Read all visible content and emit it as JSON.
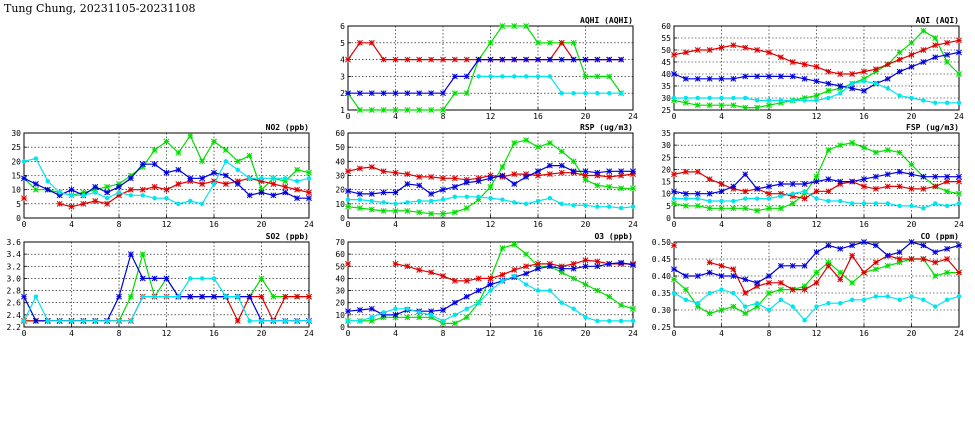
{
  "page": {
    "title": "Tung Chung, 20231105-20231108"
  },
  "colors": {
    "green": "#00dd00",
    "red": "#dd0000",
    "blue": "#0000dd",
    "cyan": "#00e5ee"
  },
  "chart_data": [
    {
      "id": "aqhi",
      "type": "line",
      "title": "AQHI (AQHI)",
      "xlim": [
        0,
        24
      ],
      "xticks": [
        0,
        4,
        8,
        12,
        16,
        20,
        24
      ],
      "ylim": [
        1,
        6
      ],
      "yticks": [
        1,
        2,
        3,
        4,
        5,
        6
      ],
      "grid": true,
      "series": [
        {
          "color": "green",
          "marker": "x",
          "values": [
            2,
            1,
            1,
            1,
            1,
            1,
            1,
            1,
            1,
            2,
            2,
            4,
            5,
            6,
            6,
            6,
            5,
            5,
            5,
            5,
            3,
            3,
            3,
            2
          ]
        },
        {
          "color": "red",
          "marker": "x",
          "values": [
            4,
            5,
            5,
            4,
            4,
            4,
            4,
            4,
            4,
            4,
            4,
            4,
            4,
            4,
            4,
            4,
            4,
            4,
            5,
            4,
            4,
            4,
            4,
            4
          ]
        },
        {
          "color": "blue",
          "marker": "x",
          "values": [
            2,
            2,
            2,
            2,
            2,
            2,
            2,
            2,
            2,
            3,
            3,
            4,
            4,
            4,
            4,
            4,
            4,
            4,
            4,
            4,
            4,
            4,
            4,
            4
          ]
        },
        {
          "color": "cyan",
          "marker": "o",
          "values": [
            null,
            null,
            null,
            null,
            null,
            null,
            null,
            null,
            null,
            null,
            null,
            3,
            3,
            3,
            3,
            3,
            3,
            3,
            2,
            2,
            2,
            2,
            2,
            2
          ]
        }
      ]
    },
    {
      "id": "aqi",
      "type": "line",
      "title": "AQI (AQI)",
      "xlim": [
        0,
        24
      ],
      "xticks": [
        0,
        4,
        8,
        12,
        16,
        20,
        24
      ],
      "ylim": [
        25,
        60
      ],
      "yticks": [
        25,
        30,
        35,
        40,
        45,
        50,
        55,
        60
      ],
      "grid": true,
      "series": [
        {
          "color": "green",
          "marker": "x",
          "values": [
            29,
            28,
            27,
            27,
            27,
            27,
            26,
            26,
            27,
            28,
            29,
            30,
            31,
            33,
            34,
            36,
            38,
            41,
            44,
            49,
            53,
            58,
            55,
            45,
            40
          ]
        },
        {
          "color": "red",
          "marker": "x",
          "values": [
            48,
            49,
            50,
            50,
            51,
            52,
            51,
            50,
            49,
            47,
            45,
            44,
            43,
            41,
            40,
            40,
            41,
            42,
            44,
            46,
            48,
            50,
            52,
            53,
            54
          ]
        },
        {
          "color": "blue",
          "marker": "x",
          "values": [
            40,
            38,
            38,
            38,
            38,
            38,
            39,
            39,
            39,
            39,
            39,
            38,
            37,
            36,
            35,
            34,
            33,
            36,
            38,
            41,
            43,
            45,
            47,
            48,
            49
          ]
        },
        {
          "color": "cyan",
          "marker": "o",
          "values": [
            30,
            30,
            30,
            30,
            30,
            30,
            30,
            29,
            29,
            29,
            29,
            29,
            29,
            30,
            32,
            36,
            37,
            36,
            34,
            31,
            30,
            29,
            28,
            28,
            28
          ]
        }
      ]
    },
    {
      "id": "no2",
      "type": "line",
      "title": "NO2 (ppb)",
      "xlim": [
        0,
        24
      ],
      "xticks": [
        0,
        4,
        8,
        12,
        16,
        20,
        24
      ],
      "ylim": [
        0,
        30
      ],
      "yticks": [
        0,
        5,
        10,
        15,
        20,
        25,
        30
      ],
      "grid": true,
      "series": [
        {
          "color": "green",
          "marker": "x",
          "values": [
            14,
            10,
            10,
            9,
            8,
            9,
            10,
            11,
            12,
            15,
            18,
            24,
            27,
            23,
            29,
            20,
            27,
            24,
            20,
            22,
            10,
            14,
            13,
            17,
            16
          ]
        },
        {
          "color": "red",
          "marker": "x",
          "values": [
            7,
            null,
            null,
            5,
            4,
            5,
            6,
            5,
            8,
            10,
            10,
            11,
            10,
            12,
            13,
            12,
            13,
            12,
            13,
            14,
            13,
            12,
            11,
            10,
            9
          ]
        },
        {
          "color": "blue",
          "marker": "x",
          "values": [
            14,
            12,
            10,
            8,
            10,
            8,
            11,
            9,
            11,
            14,
            19,
            19,
            16,
            17,
            14,
            14,
            16,
            15,
            12,
            8,
            9,
            8,
            9,
            7,
            7
          ]
        },
        {
          "color": "cyan",
          "marker": "o",
          "values": [
            20,
            21,
            13,
            9,
            8,
            8,
            9,
            7,
            9,
            8,
            8,
            7,
            7,
            5,
            6,
            5,
            12,
            20,
            17,
            14,
            14,
            14,
            14,
            13,
            14
          ]
        }
      ]
    },
    {
      "id": "rsp",
      "type": "line",
      "title": "RSP (ug/m3)",
      "xlim": [
        0,
        24
      ],
      "xticks": [
        0,
        4,
        8,
        12,
        16,
        20,
        24
      ],
      "ylim": [
        0,
        60
      ],
      "yticks": [
        0,
        10,
        20,
        30,
        40,
        50,
        60
      ],
      "grid": true,
      "series": [
        {
          "color": "green",
          "marker": "x",
          "values": [
            8,
            7,
            6,
            5,
            5,
            5,
            4,
            3,
            3,
            4,
            7,
            13,
            22,
            36,
            53,
            55,
            50,
            53,
            47,
            40,
            27,
            23,
            22,
            21,
            21
          ]
        },
        {
          "color": "red",
          "marker": "x",
          "values": [
            33,
            35,
            36,
            33,
            32,
            31,
            29,
            29,
            28,
            28,
            27,
            28,
            30,
            29,
            31,
            31,
            30,
            31,
            32,
            32,
            30,
            30,
            29,
            30,
            31
          ]
        },
        {
          "color": "blue",
          "marker": "x",
          "values": [
            19,
            17,
            17,
            18,
            18,
            24,
            23,
            17,
            20,
            22,
            25,
            26,
            28,
            30,
            24,
            29,
            33,
            37,
            37,
            33,
            33,
            32,
            33,
            33,
            33
          ]
        },
        {
          "color": "cyan",
          "marker": "o",
          "values": [
            13,
            13,
            12,
            11,
            10,
            11,
            12,
            12,
            13,
            15,
            15,
            15,
            14,
            13,
            11,
            10,
            12,
            14,
            10,
            9,
            9,
            8,
            8,
            7,
            8
          ]
        }
      ]
    },
    {
      "id": "fsp",
      "type": "line",
      "title": "FSP (ug/m3)",
      "xlim": [
        0,
        24
      ],
      "xticks": [
        0,
        4,
        8,
        12,
        16,
        20,
        24
      ],
      "ylim": [
        0,
        35
      ],
      "yticks": [
        0,
        5,
        10,
        15,
        20,
        25,
        30,
        35
      ],
      "grid": true,
      "series": [
        {
          "color": "green",
          "marker": "x",
          "values": [
            6,
            5,
            5,
            4,
            4,
            4,
            4,
            3,
            4,
            4,
            6,
            10,
            17,
            28,
            30,
            31,
            29,
            27,
            28,
            27,
            22,
            17,
            13,
            11,
            10
          ]
        },
        {
          "color": "red",
          "marker": "x",
          "values": [
            18,
            19,
            19,
            16,
            14,
            12,
            11,
            12,
            10,
            10,
            9,
            8,
            11,
            11,
            14,
            15,
            13,
            12,
            13,
            13,
            12,
            12,
            13,
            15,
            15
          ]
        },
        {
          "color": "blue",
          "marker": "x",
          "values": [
            11,
            10,
            10,
            10,
            11,
            13,
            18,
            12,
            13,
            14,
            14,
            14,
            15,
            16,
            15,
            15,
            16,
            17,
            18,
            19,
            18,
            17,
            17,
            17,
            17
          ]
        },
        {
          "color": "cyan",
          "marker": "o",
          "values": [
            8,
            8,
            8,
            7,
            7,
            7,
            8,
            8,
            8,
            9,
            10,
            11,
            8,
            7,
            7,
            6,
            6,
            6,
            6,
            5,
            5,
            4,
            6,
            5,
            6
          ]
        }
      ]
    },
    {
      "id": "so2",
      "type": "line",
      "title": "SO2 (ppb)",
      "xlim": [
        0,
        24
      ],
      "xticks": [
        0,
        4,
        8,
        12,
        16,
        20,
        24
      ],
      "ylim": [
        2.2,
        3.6
      ],
      "yticks": [
        2.2,
        2.4,
        2.6,
        2.8,
        3.0,
        3.2,
        3.4,
        3.6
      ],
      "grid": true,
      "series": [
        {
          "color": "green",
          "marker": "x",
          "values": [
            2.3,
            2.3,
            2.3,
            2.3,
            2.3,
            2.3,
            2.3,
            2.3,
            2.3,
            2.7,
            3.4,
            2.7,
            3.0,
            2.7,
            2.7,
            2.7,
            2.7,
            2.7,
            2.7,
            2.7,
            3.0,
            2.7,
            2.7,
            2.7,
            2.7
          ]
        },
        {
          "color": "red",
          "marker": "x",
          "values": [
            2.3,
            2.3,
            2.3,
            2.3,
            2.3,
            2.3,
            2.3,
            2.3,
            2.3,
            2.3,
            2.7,
            2.7,
            2.7,
            2.7,
            2.7,
            2.7,
            2.7,
            2.7,
            2.3,
            2.7,
            2.7,
            2.3,
            2.7,
            2.7,
            2.7
          ]
        },
        {
          "color": "blue",
          "marker": "x",
          "values": [
            2.7,
            2.3,
            2.3,
            2.3,
            2.3,
            2.3,
            2.3,
            2.3,
            2.7,
            3.4,
            3.0,
            3.0,
            3.0,
            2.7,
            2.7,
            2.7,
            2.7,
            2.7,
            2.7,
            2.7,
            2.3,
            2.3,
            2.3,
            2.3,
            2.3
          ]
        },
        {
          "color": "cyan",
          "marker": "o",
          "values": [
            2.3,
            2.7,
            2.3,
            2.3,
            2.3,
            2.3,
            2.3,
            2.3,
            2.3,
            2.3,
            2.7,
            2.7,
            2.7,
            2.7,
            3.0,
            3.0,
            3.0,
            2.7,
            2.7,
            2.3,
            2.3,
            2.3,
            2.3,
            2.3,
            2.3
          ]
        }
      ]
    },
    {
      "id": "o3",
      "type": "line",
      "title": "O3 (ppb)",
      "xlim": [
        0,
        24
      ],
      "xticks": [
        0,
        4,
        8,
        12,
        16,
        20,
        24
      ],
      "ylim": [
        0,
        70
      ],
      "yticks": [
        0,
        10,
        20,
        30,
        40,
        50,
        60,
        70
      ],
      "grid": true,
      "series": [
        {
          "color": "green",
          "marker": "x",
          "values": [
            5,
            5,
            5,
            8,
            8,
            8,
            8,
            8,
            3,
            3,
            8,
            20,
            40,
            65,
            68,
            60,
            50,
            50,
            45,
            40,
            35,
            30,
            25,
            18,
            15
          ]
        },
        {
          "color": "red",
          "marker": "x",
          "values": [
            52,
            null,
            null,
            null,
            52,
            50,
            47,
            45,
            42,
            38,
            38,
            40,
            40,
            43,
            47,
            50,
            52,
            52,
            50,
            52,
            55,
            54,
            52,
            52,
            52
          ]
        },
        {
          "color": "blue",
          "marker": "x",
          "values": [
            13,
            14,
            15,
            10,
            10,
            14,
            13,
            13,
            14,
            20,
            25,
            30,
            35,
            38,
            41,
            44,
            48,
            50,
            48,
            48,
            50,
            50,
            52,
            53,
            51
          ]
        },
        {
          "color": "cyan",
          "marker": "o",
          "values": [
            5,
            5,
            8,
            12,
            15,
            15,
            12,
            10,
            5,
            10,
            15,
            20,
            30,
            38,
            42,
            35,
            30,
            30,
            20,
            15,
            8,
            5,
            5,
            5,
            5
          ]
        }
      ]
    },
    {
      "id": "co",
      "type": "line",
      "title": "CO (ppm)",
      "xlim": [
        0,
        24
      ],
      "xticks": [
        0,
        4,
        8,
        12,
        16,
        20,
        24
      ],
      "ylim": [
        0.25,
        0.5
      ],
      "yticks": [
        0.25,
        0.3,
        0.35,
        0.4,
        0.45,
        0.5
      ],
      "grid": true,
      "series": [
        {
          "color": "green",
          "marker": "x",
          "values": [
            0.39,
            0.36,
            0.31,
            0.29,
            0.3,
            0.31,
            0.29,
            0.31,
            0.35,
            0.36,
            0.36,
            0.37,
            0.41,
            0.44,
            0.41,
            0.38,
            0.41,
            0.42,
            0.43,
            0.44,
            0.45,
            0.45,
            0.4,
            0.41,
            0.41
          ]
        },
        {
          "color": "red",
          "marker": "x",
          "values": [
            0.49,
            null,
            null,
            0.44,
            0.43,
            0.42,
            0.35,
            0.37,
            0.38,
            0.38,
            0.36,
            0.36,
            0.38,
            0.43,
            0.39,
            0.46,
            0.41,
            0.44,
            0.46,
            0.45,
            0.45,
            0.45,
            0.44,
            0.45,
            0.41
          ]
        },
        {
          "color": "blue",
          "marker": "x",
          "values": [
            0.42,
            0.4,
            0.4,
            0.41,
            0.4,
            0.4,
            0.39,
            0.38,
            0.4,
            0.43,
            0.43,
            0.43,
            0.47,
            0.49,
            0.48,
            0.49,
            0.5,
            0.49,
            0.46,
            0.47,
            0.5,
            0.49,
            0.47,
            0.48,
            0.49
          ]
        },
        {
          "color": "cyan",
          "marker": "o",
          "values": [
            0.35,
            0.33,
            0.32,
            0.35,
            0.36,
            0.35,
            0.31,
            0.32,
            0.3,
            0.33,
            0.31,
            0.27,
            0.31,
            0.32,
            0.32,
            0.33,
            0.33,
            0.34,
            0.34,
            0.33,
            0.34,
            0.33,
            0.31,
            0.33,
            0.34
          ]
        }
      ]
    }
  ]
}
